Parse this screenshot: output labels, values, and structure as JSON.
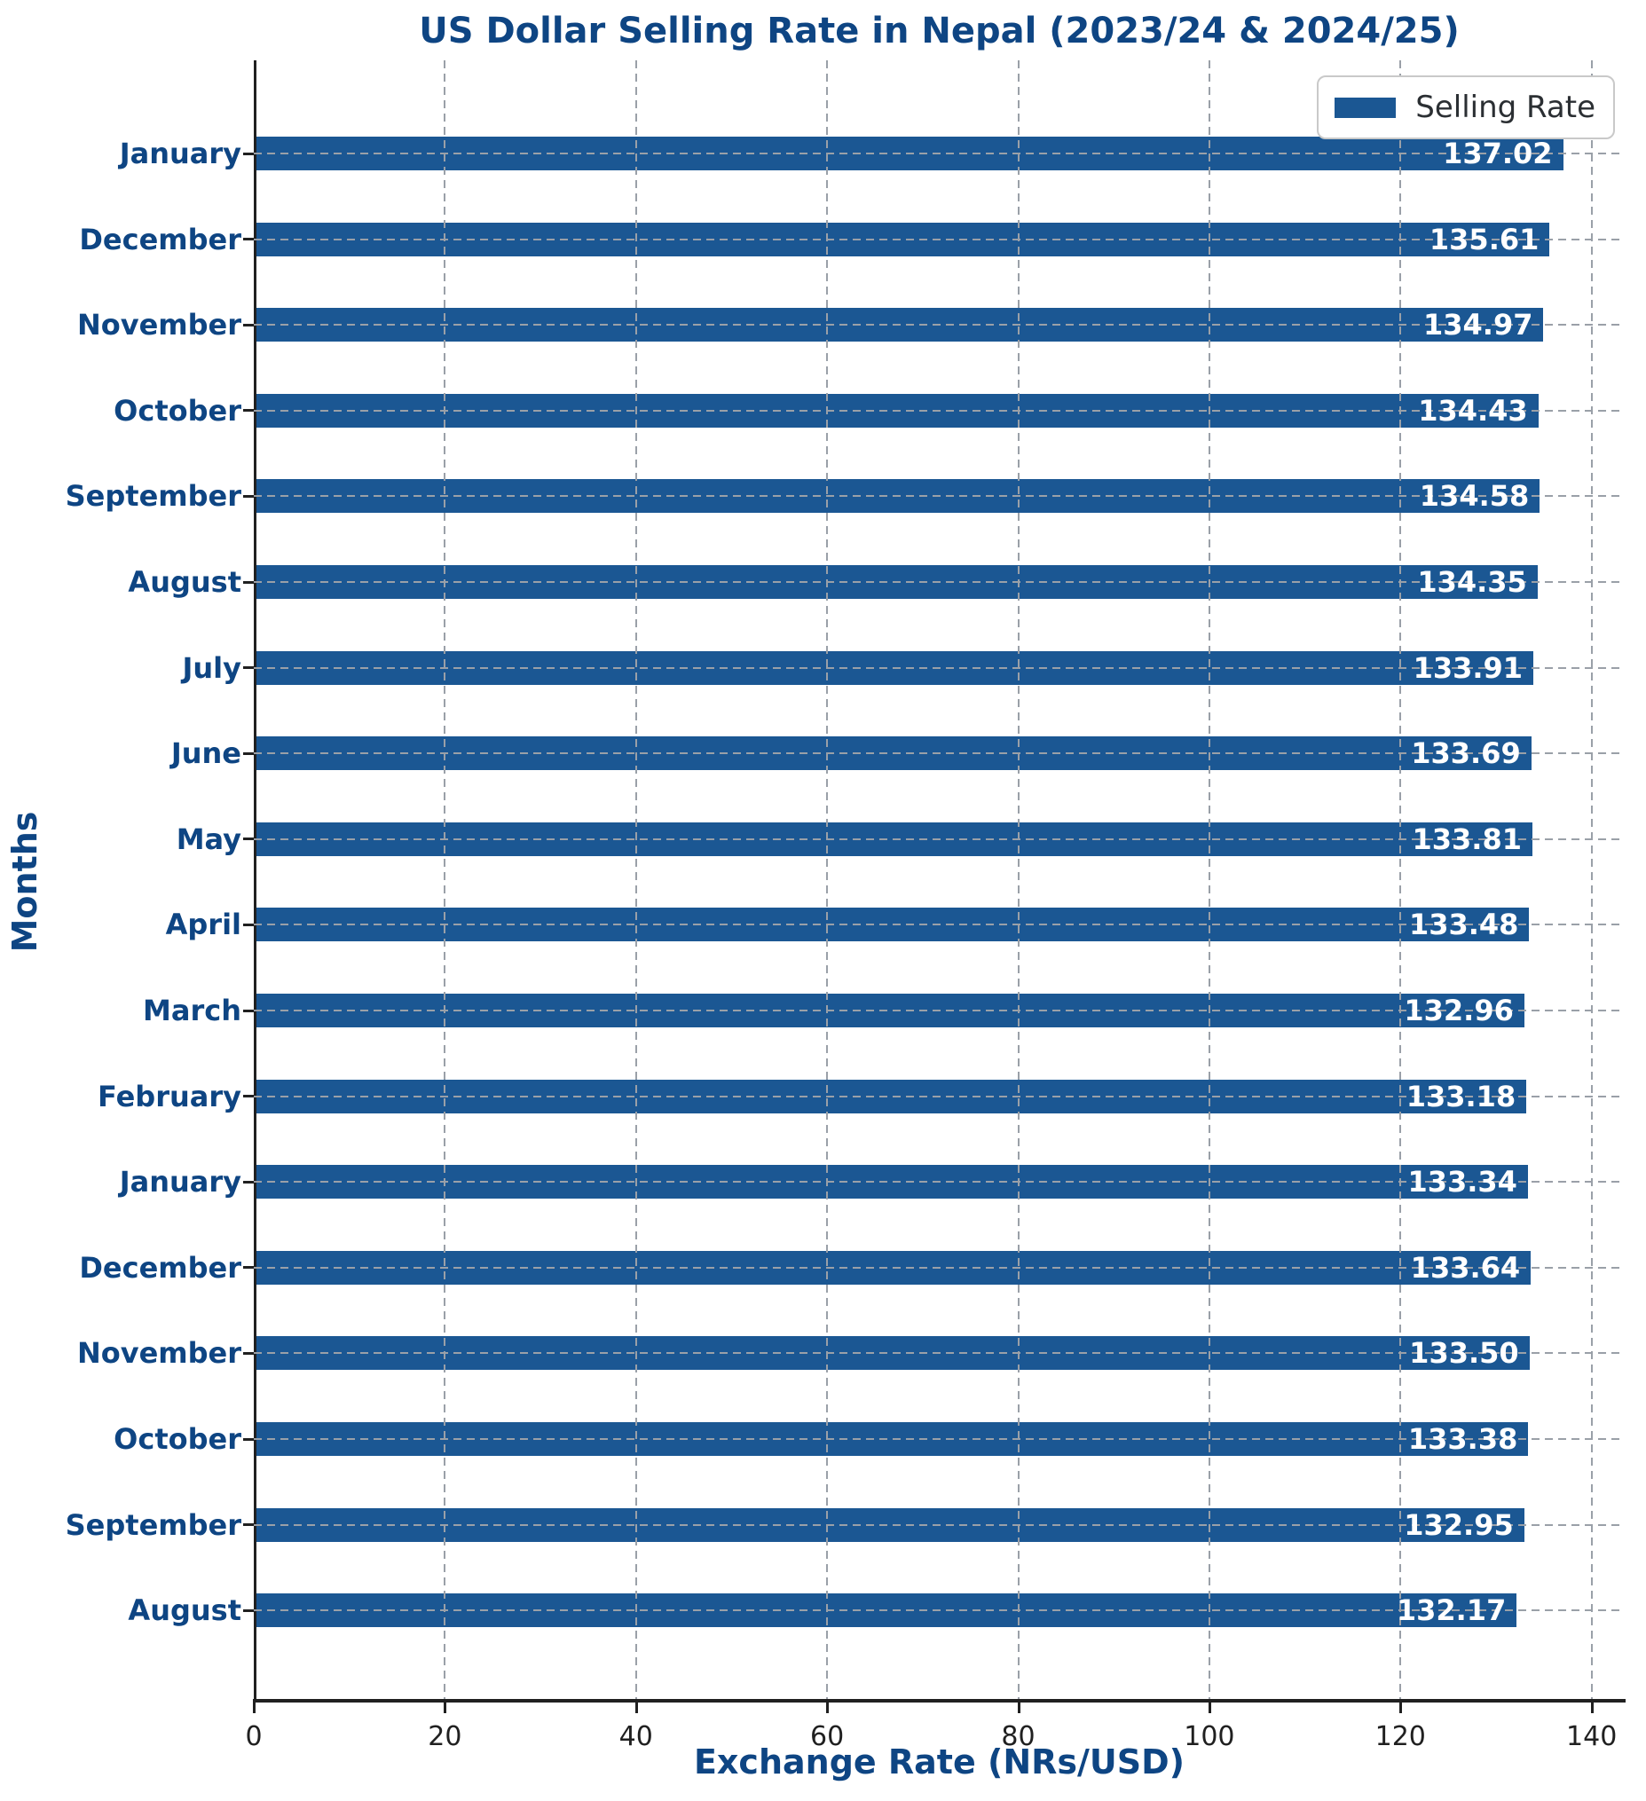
{
  "title": "US Dollar Selling Rate in Nepal (2023/24 & 2024/25)",
  "colors": {
    "bar": "#1b5793",
    "heading": "#0e4583",
    "tick": "#202020",
    "grid": "#9aa0a8",
    "value_label": "#ffffff",
    "legend_text": "#2b2f33",
    "legend_border": "#c9c9c9"
  },
  "legend": {
    "label": "Selling Rate"
  },
  "chart_data": {
    "type": "bar",
    "orientation": "horizontal",
    "title": "US Dollar Selling Rate in Nepal (2023/24 & 2024/25)",
    "xlabel": "Exchange Rate (NRs/USD)",
    "ylabel": "Months",
    "legend_entries": [
      "Selling Rate"
    ],
    "legend_position": "upper right",
    "grid": true,
    "xlim": [
      0,
      143.5
    ],
    "xticks": [
      0,
      20,
      40,
      60,
      80,
      100,
      120,
      140
    ],
    "categories": [
      "January",
      "December",
      "November",
      "October",
      "September",
      "August",
      "July",
      "June",
      "May",
      "April",
      "March",
      "February",
      "January",
      "December",
      "November",
      "October",
      "September",
      "August"
    ],
    "values": [
      137.02,
      135.61,
      134.97,
      134.43,
      134.58,
      134.35,
      133.91,
      133.69,
      133.81,
      133.48,
      132.96,
      133.18,
      133.34,
      133.64,
      133.5,
      133.38,
      132.95,
      132.17
    ],
    "value_labels": [
      "137.02",
      "135.61",
      "134.97",
      "134.43",
      "134.58",
      "134.35",
      "133.91",
      "133.69",
      "133.81",
      "133.48",
      "132.96",
      "133.18",
      "133.34",
      "133.64",
      "133.50",
      "133.38",
      "132.95",
      "132.17"
    ]
  }
}
